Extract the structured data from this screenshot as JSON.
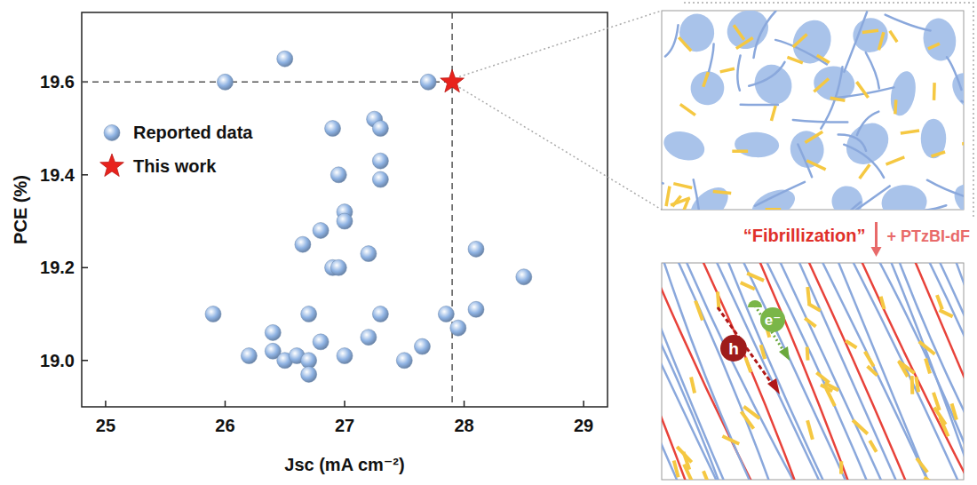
{
  "chart_data": {
    "type": "scatter",
    "xlabel": "Jsc (mA cm⁻²)",
    "ylabel": "PCE (%)",
    "xlim": [
      24.8,
      29.2
    ],
    "xticks": [
      25,
      26,
      27,
      28,
      29
    ],
    "ylim": [
      18.9,
      19.75
    ],
    "yticks": [
      {
        "value": 19,
        "label": "19.0"
      },
      19.2,
      19.4,
      19.6
    ],
    "legend": "center left",
    "series": [
      {
        "name": "Reported data",
        "color": "#8fb3e3",
        "marker": "sphere",
        "x": [
          26.0,
          26.5,
          27.7,
          26.9,
          27.25,
          27.3,
          27.3,
          27.3,
          26.95,
          27.0,
          27.0,
          26.8,
          26.65,
          27.2,
          26.9,
          26.95,
          28.1,
          28.5,
          25.9,
          26.7,
          27.3,
          27.85,
          28.1,
          26.4,
          26.8,
          27.2,
          27.95,
          26.2,
          26.4,
          26.5,
          26.6,
          26.7,
          26.7,
          27.0,
          27.5,
          27.65
        ],
        "values": [
          19.6,
          19.65,
          19.6,
          19.5,
          19.52,
          19.5,
          19.43,
          19.39,
          19.4,
          19.32,
          19.3,
          19.28,
          19.25,
          19.23,
          19.2,
          19.2,
          19.24,
          19.18,
          19.1,
          19.1,
          19.1,
          19.1,
          19.11,
          19.06,
          19.04,
          19.05,
          19.07,
          19.01,
          19.02,
          19.0,
          19.01,
          19.0,
          18.97,
          19.01,
          19.0,
          19.03
        ]
      },
      {
        "name": "This work",
        "color": "#e8221c",
        "marker": "star",
        "x": [
          27.9
        ],
        "values": [
          19.6
        ]
      }
    ]
  },
  "diagram": {
    "process_label": "“Fibrillization”",
    "additive_label": "+ PTzBI-dF",
    "hole_label": "h",
    "electron_label": "e⁻"
  }
}
